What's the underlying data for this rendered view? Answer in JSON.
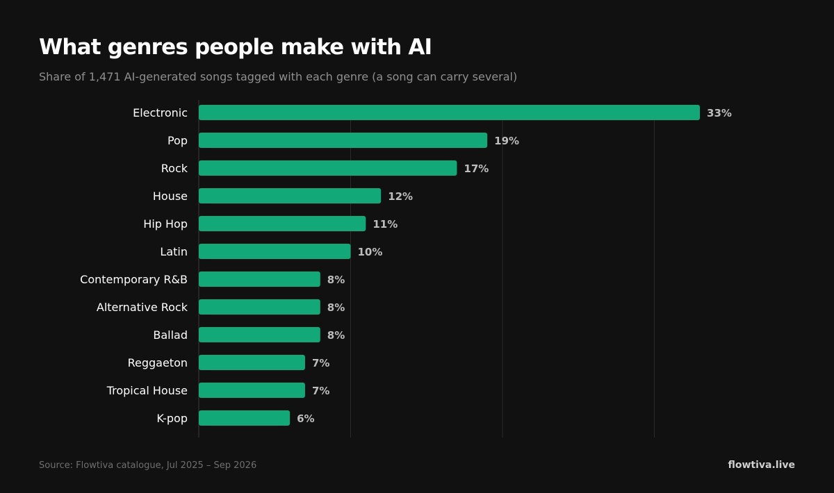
{
  "header": {
    "title": "What genres people make with AI",
    "subtitle": "Share of 1,471 AI-generated songs tagged with each genre (a song can carry several)"
  },
  "footer": {
    "source": "Source: Flowtiva catalogue, Jul 2025 – Sep 2026",
    "brand": "flowtiva.live"
  },
  "chart_data": {
    "type": "bar",
    "orientation": "horizontal",
    "title": "What genres people make with AI",
    "subtitle": "Share of 1,471 AI-generated songs tagged with each genre (a song can carry several)",
    "categories": [
      "Electronic",
      "Pop",
      "Rock",
      "House",
      "Hip Hop",
      "Latin",
      "Contemporary R&B",
      "Alternative Rock",
      "Ballad",
      "Reggaeton",
      "Tropical House",
      "K-pop"
    ],
    "values": [
      33,
      19,
      17,
      12,
      11,
      10,
      8,
      8,
      8,
      7,
      7,
      6
    ],
    "value_labels": [
      "33%",
      "19%",
      "17%",
      "12%",
      "11%",
      "10%",
      "8%",
      "8%",
      "8%",
      "7%",
      "7%",
      "6%"
    ],
    "unit": "%",
    "xlim": [
      0,
      40
    ],
    "gridlines": [
      10,
      20,
      30
    ],
    "grid": true,
    "legend": "none",
    "bar_color": "#12a878",
    "background_color": "#111111"
  }
}
